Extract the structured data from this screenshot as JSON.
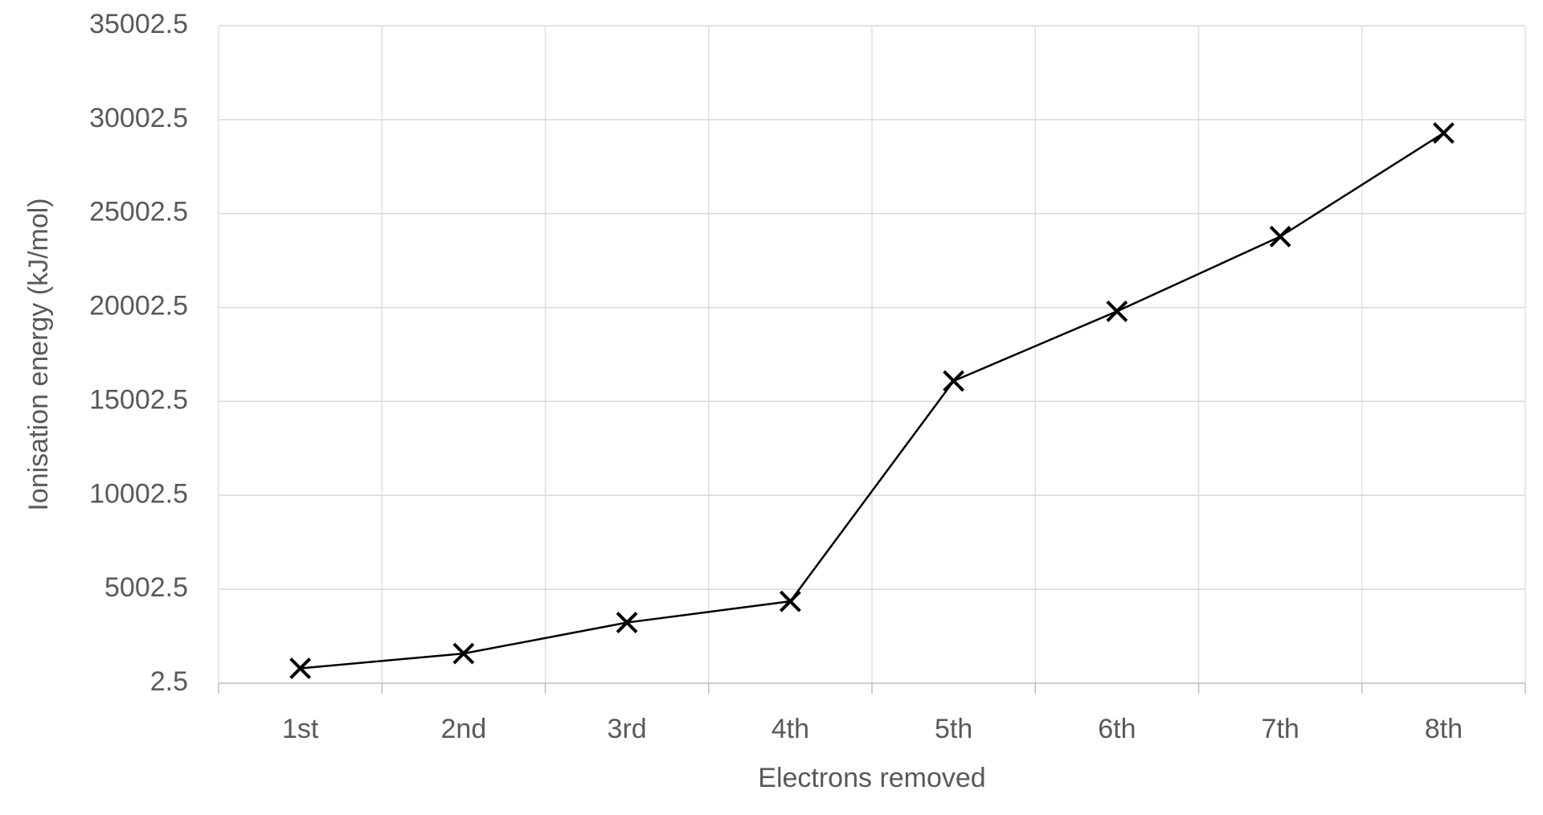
{
  "chart_data": {
    "type": "line",
    "x_label": "Electrons removed",
    "y_label": "Ionisation energy (kJ/mol)",
    "categories": [
      "1st",
      "2nd",
      "3rd",
      "4th",
      "5th",
      "6th",
      "7th",
      "8th"
    ],
    "values": [
      790,
      1580,
      3230,
      4360,
      16090,
      19800,
      23780,
      29290
    ],
    "color": "#000000",
    "marker": "x",
    "ylim": [
      2.5,
      35002.5
    ],
    "yticks": [
      2.5,
      5002.5,
      10002.5,
      15002.5,
      20002.5,
      25002.5,
      30002.5,
      35002.5
    ],
    "grid": true
  }
}
